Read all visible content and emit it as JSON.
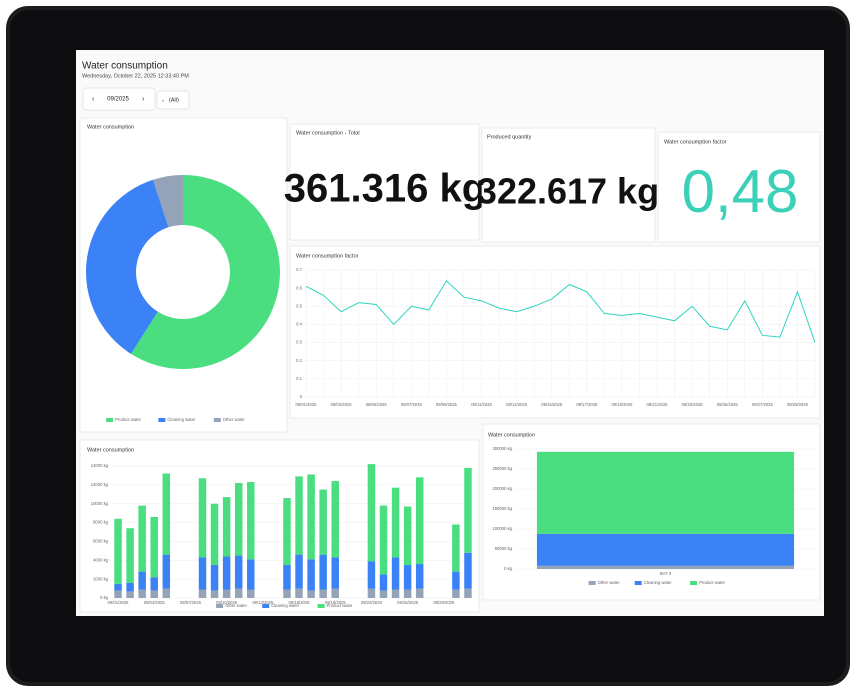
{
  "header": {
    "title": "Water consumption",
    "datetime": "Wednesday, October 22, 2025 12:33:40 PM"
  },
  "controls": {
    "period": "09/2025",
    "filter": "(All)"
  },
  "kpis": [
    {
      "title": "Water consumption - Total",
      "value": "361.316 kg"
    },
    {
      "title": "Produced quantity",
      "value": "322.617 kg"
    },
    {
      "title": "Water consumption factor",
      "value": "0,48"
    }
  ],
  "chart_data": [
    {
      "type": "pie",
      "donut": true,
      "title": "Water consumption",
      "categories": [
        "Product water",
        "Cleaning water",
        "Other water"
      ],
      "values": [
        59,
        36,
        5
      ],
      "colors": [
        "#4ade80",
        "#3b82f6",
        "#94a3b8"
      ]
    },
    {
      "type": "line",
      "title": "Water consumption factor",
      "color": "#2dd4bf",
      "grid": true,
      "categories": [
        "09/01/2025",
        null,
        "09/03/2025",
        null,
        "09/05/2025",
        null,
        "09/07/2025",
        null,
        "09/09/2025",
        null,
        "09/11/2025",
        null,
        "09/13/2025",
        null,
        "09/15/2025",
        null,
        "09/17/2025",
        null,
        "09/19/2025",
        null,
        "09/21/2025",
        null,
        "09/23/2025",
        null,
        "09/25/2025",
        null,
        "09/27/2025",
        null,
        "09/29/2025",
        null
      ],
      "values": [
        0.61,
        0.56,
        0.47,
        0.52,
        0.51,
        0.4,
        0.5,
        0.48,
        0.64,
        0.55,
        0.53,
        0.49,
        0.47,
        0.5,
        0.54,
        0.62,
        0.58,
        0.46,
        0.45,
        0.46,
        0.44,
        0.42,
        0.5,
        0.39,
        0.37,
        0.53,
        0.34,
        0.33,
        0.58,
        0.3
      ],
      "ylim": [
        0,
        0.7
      ],
      "yticks": [
        0,
        0.1,
        0.2,
        0.3,
        0.4,
        0.5,
        0.6,
        0.7
      ]
    },
    {
      "type": "bar",
      "stacked": true,
      "title": "Water consumption",
      "grid": true,
      "categories": [
        "09/01/2025",
        null,
        null,
        "09/04/2025",
        null,
        null,
        "09/07/2025",
        null,
        null,
        "09/10/2025",
        null,
        null,
        "09/13/2025",
        null,
        null,
        "09/16/2025",
        null,
        null,
        "09/19/2025",
        null,
        null,
        "09/22/2025",
        null,
        null,
        "09/25/2025",
        null,
        null,
        "09/28/2025",
        null,
        null
      ],
      "series": [
        {
          "name": "Other water",
          "color": "#94a3b8",
          "values": [
            800,
            700,
            900,
            800,
            1000,
            null,
            null,
            900,
            800,
            900,
            1000,
            900,
            null,
            null,
            900,
            1000,
            800,
            900,
            1000,
            null,
            null,
            1000,
            800,
            900,
            900,
            1000,
            null,
            null,
            900,
            1000
          ]
        },
        {
          "name": "Cleaning water",
          "color": "#3b82f6",
          "values": [
            700,
            900,
            1900,
            1400,
            3600,
            null,
            null,
            3400,
            2700,
            3500,
            3500,
            3200,
            null,
            null,
            2600,
            3600,
            3300,
            3700,
            3300,
            null,
            null,
            2900,
            1700,
            3400,
            2600,
            2600,
            null,
            null,
            1900,
            3800
          ]
        },
        {
          "name": "Product water",
          "color": "#4ade80",
          "values": [
            6900,
            5800,
            7000,
            6400,
            8600,
            null,
            null,
            8400,
            6500,
            6300,
            7700,
            8200,
            null,
            null,
            7100,
            8300,
            9000,
            6900,
            8100,
            null,
            null,
            10300,
            7300,
            7400,
            6200,
            9200,
            null,
            null,
            5000,
            9000
          ]
        }
      ],
      "ylim": [
        0,
        14000
      ],
      "yticks": [
        {
          "value": 0,
          "label": "0 kg"
        },
        {
          "value": 2000,
          "label": "2000 kg"
        },
        {
          "value": 4000,
          "label": "4000 kg"
        },
        {
          "value": 6000,
          "label": "6000 kg"
        },
        {
          "value": 8000,
          "label": "8000 kg"
        },
        {
          "value": 10000,
          "label": "10000 kg"
        },
        {
          "value": 12000,
          "label": "12000 kg"
        },
        {
          "value": 14000,
          "label": "14000 kg"
        }
      ]
    },
    {
      "type": "bar",
      "stacked": true,
      "title": "Water consumption",
      "grid": true,
      "categories": [
        "BAT 3"
      ],
      "series": [
        {
          "name": "Other water",
          "color": "#94a3b8",
          "values": [
            8000
          ]
        },
        {
          "name": "Cleaning water",
          "color": "#3b82f6",
          "values": [
            80000
          ]
        },
        {
          "name": "Product water",
          "color": "#4ade80",
          "values": [
            205000
          ]
        }
      ],
      "ylim": [
        0,
        300000
      ],
      "yticks": [
        {
          "value": 0,
          "label": "0 kg"
        },
        {
          "value": 50000,
          "label": "50000 kg"
        },
        {
          "value": 100000,
          "label": "100000 kg"
        },
        {
          "value": 150000,
          "label": "150000 kg"
        },
        {
          "value": 200000,
          "label": "200000 kg"
        },
        {
          "value": 250000,
          "label": "250000 kg"
        },
        {
          "value": 300000,
          "label": "300000 kg"
        }
      ]
    }
  ]
}
